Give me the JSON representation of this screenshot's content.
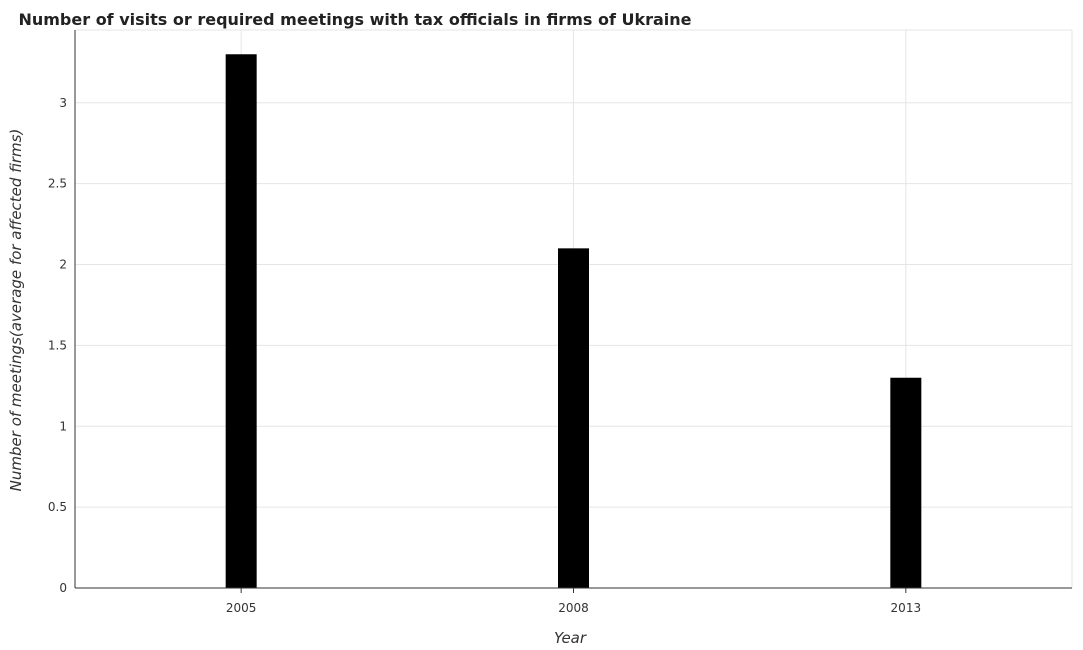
{
  "chart_data": {
    "type": "bar",
    "title": "Number of visits or required meetings with tax officials in firms of Ukraine",
    "xlabel": "Year",
    "ylabel": "Number of meetings(average for affected firms)",
    "categories": [
      "2005",
      "2008",
      "2013"
    ],
    "values": [
      3.3,
      2.1,
      1.3
    ],
    "ylim": [
      0,
      3.45
    ],
    "yticks": [
      0,
      0.5,
      1,
      1.5,
      2,
      2.5,
      3
    ],
    "ytick_labels": [
      "0",
      "0.5",
      "1",
      "1.5",
      "2",
      "2.5",
      "3"
    ],
    "grid": true,
    "bar_color": "#000000"
  }
}
